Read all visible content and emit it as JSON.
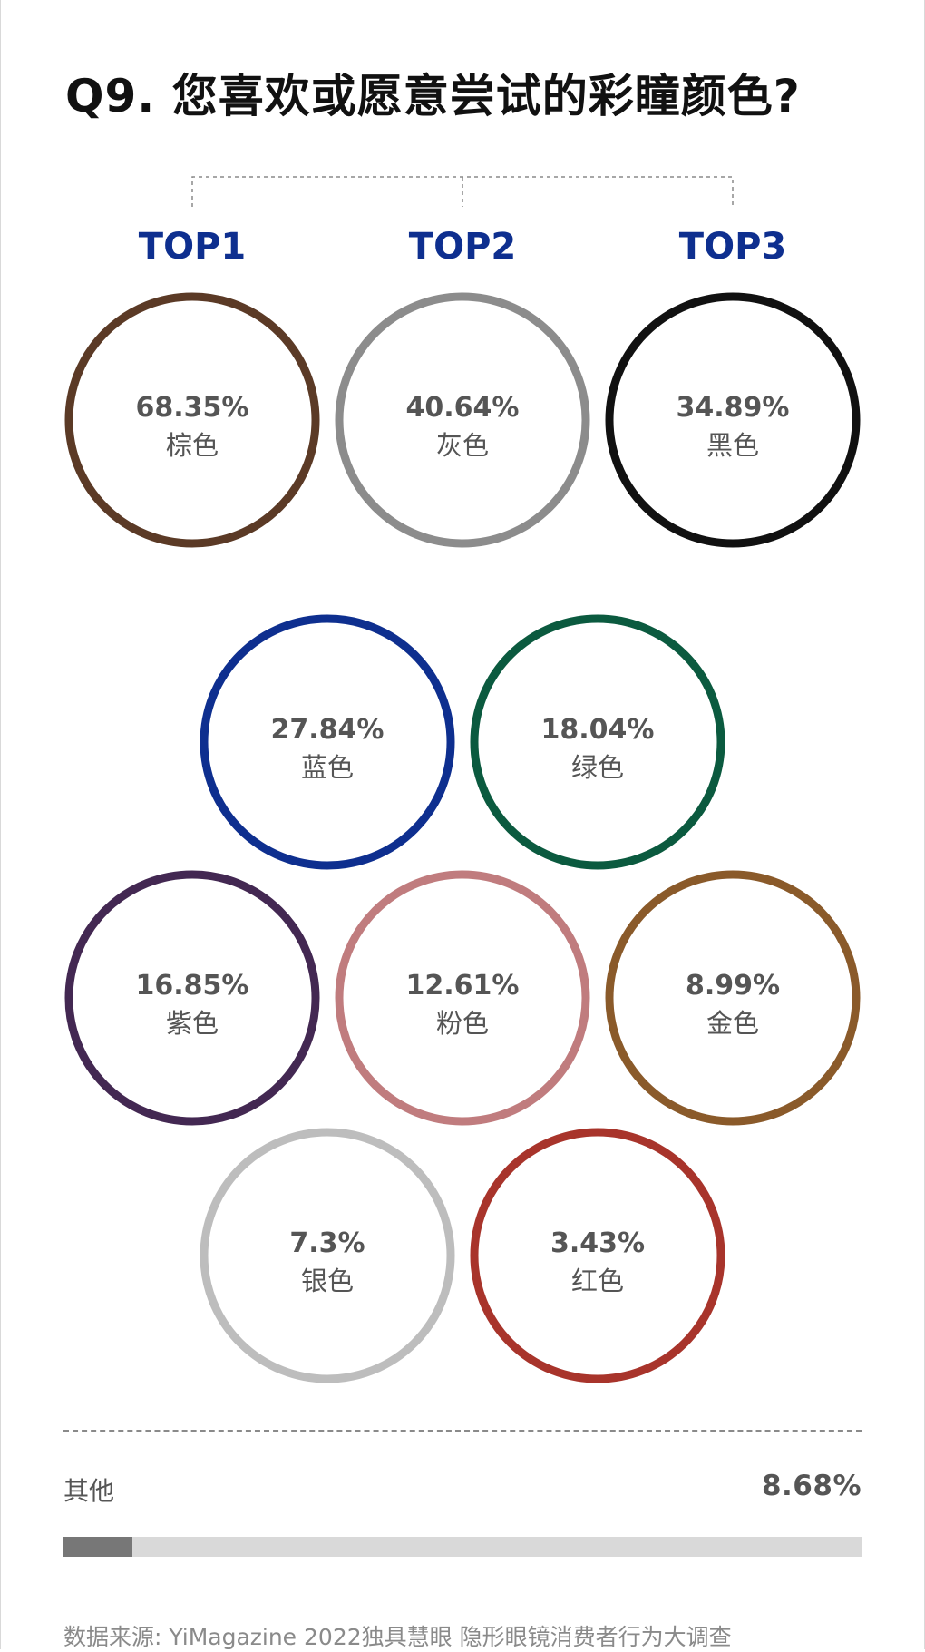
{
  "title": "Q9. 您喜欢或愿意尝试的彩瞳颜色?",
  "rank_labels": [
    "TOP1",
    "TOP2",
    "TOP3"
  ],
  "chart_data": {
    "type": "bubble",
    "title": "Q9. 您喜欢或愿意尝试的彩瞳颜色?",
    "unit": "%",
    "categories": [
      "棕色",
      "灰色",
      "黑色",
      "蓝色",
      "绿色",
      "紫色",
      "粉色",
      "金色",
      "银色",
      "红色"
    ],
    "values": [
      68.35,
      40.64,
      34.89,
      27.84,
      18.04,
      16.85,
      12.61,
      8.99,
      7.3,
      3.43
    ],
    "value_labels": [
      "68.35%",
      "40.64%",
      "34.89%",
      "27.84%",
      "18.04%",
      "16.85%",
      "12.61%",
      "8.99%",
      "7.3%",
      "3.43%"
    ],
    "colors": [
      "#5b3a26",
      "#8c8c8c",
      "#111111",
      "#0e2f8f",
      "#0b5a3f",
      "#432852",
      "#c07c7e",
      "#8a5a2a",
      "#bdbdbd",
      "#a8342b"
    ]
  },
  "other": {
    "label": "其他",
    "value": 8.68,
    "value_label": "8.68%",
    "bar_color": "#777777",
    "track_color": "#d9d9d9"
  },
  "source": "数据来源: YiMagazine 2022独具慧眼 隐形眼镜消费者行为大调查",
  "colors": {
    "rank_label": "#0e2f8f",
    "value_text": "#555555"
  }
}
